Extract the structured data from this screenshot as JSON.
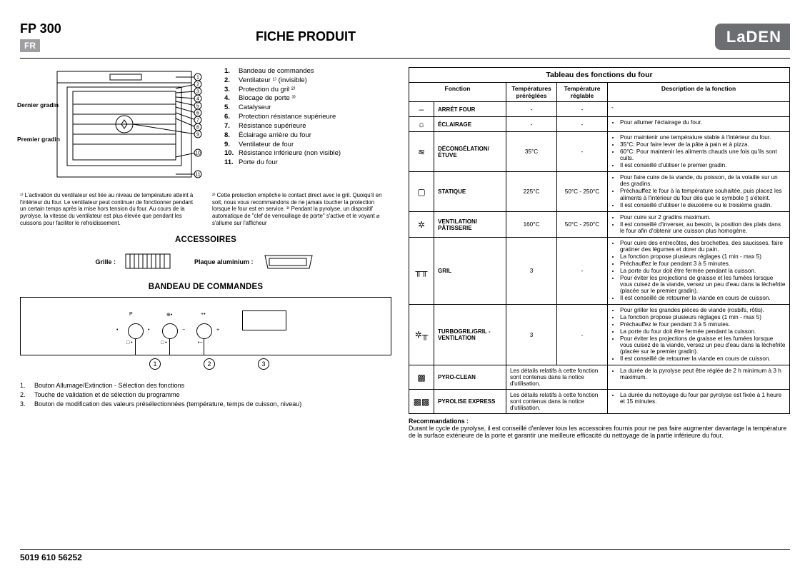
{
  "header": {
    "model": "FP 300",
    "lang": "FR",
    "title": "FICHE PRODUIT",
    "brand": "LaDEN"
  },
  "footer": {
    "code": "5019 610 56252"
  },
  "oven": {
    "side_labels": {
      "top": "Dernier gradin",
      "bottom": "Premier gradin"
    },
    "legend": [
      {
        "n": "1.",
        "t": "Bandeau de commandes"
      },
      {
        "n": "2.",
        "t": "Ventilateur ¹⁾ (invisible)"
      },
      {
        "n": "3.",
        "t": "Protection du gril ²⁾"
      },
      {
        "n": "4.",
        "t": "Blocage de porte ³⁾"
      },
      {
        "n": "5.",
        "t": "Catalyseur"
      },
      {
        "n": "6.",
        "t": "Protection résistance supérieure"
      },
      {
        "n": "7.",
        "t": "Résistance supérieure"
      },
      {
        "n": "8.",
        "t": "Éclairage arrière du four"
      },
      {
        "n": "9.",
        "t": "Ventilateur de four"
      },
      {
        "n": "10.",
        "t": "Résistance inférieure (non visible)"
      },
      {
        "n": "11.",
        "t": "Porte du four"
      }
    ],
    "footnotes": {
      "a": "¹⁾ L'activation du ventilateur est liée au niveau de température atteint à l'intérieur du four. Le ventilateur peut continuer de fonctionner pendant un certain temps après la mise hors tension du four. Au cours de la pyrolyse, la vitesse du ventilateur est plus élevée que pendant les cuissons pour faciliter le refroidissement.",
      "b": "²⁾ Cette protection empêche le contact direct avec le gril. Quoiqu'il en soit, nous vous recommandons de ne jamais toucher la protection lorsque le four est en service. ³⁾ Pendant la pyrolyse, un dispositif automatique de \"clef de verrouillage de porte\" s'active et le voyant ⌀ s'allume sur l'afficheur"
    }
  },
  "accessories": {
    "heading": "ACCESSOIRES",
    "items": [
      {
        "label": "Grille :"
      },
      {
        "label": "Plaque aluminium :"
      }
    ]
  },
  "panel": {
    "heading": "BANDEAU DE COMMANDES",
    "refs": [
      "1",
      "2",
      "3"
    ],
    "list": [
      {
        "n": "1.",
        "t": "Bouton Allumage/Extinction - Sélection des fonctions"
      },
      {
        "n": "2.",
        "t": "Touche de validation et de sélection du programme"
      },
      {
        "n": "3.",
        "t": "Bouton de modification des valeurs présélectionnées (température, temps de cuisson, niveau)"
      }
    ]
  },
  "table": {
    "title": "Tableau des fonctions du four",
    "head": [
      "Fonction",
      "Températures préréglées",
      "Température réglable",
      "Description de la fonction"
    ],
    "rows": [
      {
        "icon": "–",
        "fn": "Arrét four",
        "pre": "-",
        "reg": "-",
        "desc": [
          "-"
        ],
        "list": false
      },
      {
        "icon": "☼",
        "fn": "ÉCLAIRAGE",
        "pre": "-",
        "reg": "-",
        "desc": [
          "Pour allumer l'éclairage du four."
        ]
      },
      {
        "icon": "≋",
        "fn": "DÉCONGÉLATION/ ÉTUVE",
        "pre": "35°C",
        "reg": "-",
        "desc": [
          "Pour maintenir une température stable à l'intérieur du four.",
          "35°C: Pour faire lever de la pâte à pain et à pizza.",
          "60°C: Pour maintenir les aliments chauds une fois qu'ils sont cuits.",
          "Il est conseillé d'utiliser le premier gradin."
        ]
      },
      {
        "icon": "▢",
        "fn": "STATIQUE",
        "pre": "225°C",
        "reg": "50°C - 250°C",
        "desc": [
          "Pour faire cuire de la viande, du poisson, de la volaille sur un des gradins.",
          "Préchauffez le four à la température souhaitée, puis placez les aliments à l'intérieur du four dès que le symbole ▯ s'éteint.",
          "Il est conseillé d'utiliser le deuxième ou le troisième gradin."
        ]
      },
      {
        "icon": "✲",
        "fn": "VENTILATION/ PÂTISSERIE",
        "pre": "160°C",
        "reg": "50°C - 250°C",
        "desc": [
          "Pour cuire sur 2 gradins maximum.",
          "Il est conseillé d'inverser, au besoin, la position des plats dans le four afin d'obtenir une cuisson plus homogène."
        ]
      },
      {
        "icon": "╥╥",
        "fn": "GRIL",
        "pre": "3",
        "reg": "-",
        "desc": [
          "Pour cuire des entrecôtes, des brochettes, des saucisses, faire gratiner des légumes et dorer du pain.",
          "La fonction propose plusieurs réglages (1 min - max 5)",
          "Préchauffez le four pendant 3 à 5 minutes.",
          "La porte du four doit être fermée pendant la cuisson.",
          "Pour éviter les projections de graisse et les fumées lorsque vous cuisez de la viande, versez un peu d'eau dans la lèchefrite (placée sur le premier gradin).",
          "Il est conseillé de retourner la viande en cours de cuisson."
        ]
      },
      {
        "icon": "✲╥",
        "fn": "TURBOGRIL/GRIL - VENTILATION",
        "pre": "3",
        "reg": "-",
        "desc": [
          "Pour griller les grandes pièces de viande (rosbifs, rôtis).",
          "La fonction propose plusieurs réglages (1 min - max 5)",
          "Préchauffez le four pendant 3 à 5 minutes.",
          "La porte du four doit être fermée pendant la cuisson.",
          "Pour éviter les projections de graisse et les fumées lorsque vous cuisez de la viande, versez un peu d'eau dans la lèchefrite (placée sur le premier gradin).",
          "Il est conseillé de retourner la viande en cours de cuisson."
        ]
      },
      {
        "icon": "▩",
        "fn": "PYRO-CLEAN",
        "pre_span": "Les détails relatifs à cette fonction sont contenus dans la notice d'utilisation.",
        "desc": [
          "La durée de la pyrolyse peut être réglée de 2 h minimum à 3 h maximum."
        ]
      },
      {
        "icon": "▩▩",
        "fn": "PYROLISE EXPRESS",
        "pre_span": "Les détails relatifs à cette fonction sont contenus dans la notice d'utilisation.",
        "desc": [
          "La durée du nettoyage du four par pyrolyse est fixée à 1 heure et 15 minutes."
        ]
      }
    ]
  },
  "reco": {
    "heading": "Recommandations :",
    "text": "Durant le cycle de pyrolyse, il est conseillé d'enlever tous les accessoires fournis pour ne pas faire augmenter davantage la température de la surface extérieure de la porte et garantir une meilleure efficacité du nettoyage de la partie inférieure du four."
  },
  "colors": {
    "brand_bg": "#6d6e71",
    "lang_bg": "#9d9fa2",
    "line": "#000000"
  }
}
